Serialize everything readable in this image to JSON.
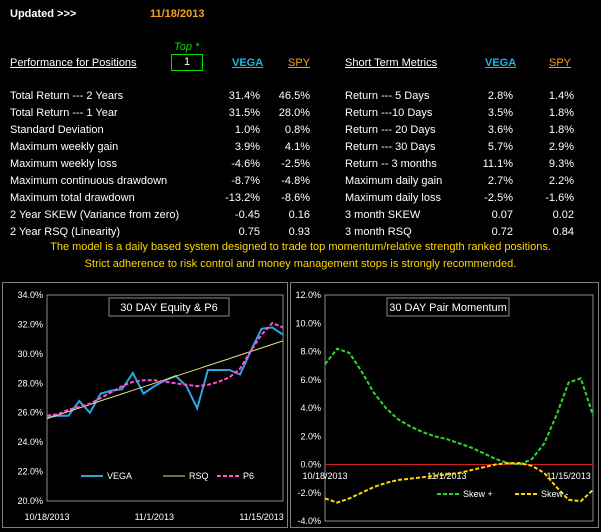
{
  "header": {
    "updated_label": "Updated >>>",
    "date": "11/18/2013"
  },
  "perf": {
    "title": "Performance for Positions",
    "top_label": "Top *",
    "top_value": "1",
    "col1": "VEGA",
    "col2": "SPY",
    "rows": [
      {
        "label": "Total Return --- 2 Years",
        "v1": "31.4%",
        "v2": "46.5%"
      },
      {
        "label": "Total Return --- 1 Year",
        "v1": "31.5%",
        "v2": "28.0%"
      },
      {
        "label": "Standard Deviation",
        "v1": "1.0%",
        "v2": "0.8%"
      },
      {
        "label": "Maximum weekly gain",
        "v1": "3.9%",
        "v2": "4.1%"
      },
      {
        "label": "Maximum weekly loss",
        "v1": "-4.6%",
        "v2": "-2.5%"
      },
      {
        "label": "Maximum continuous drawdown",
        "v1": "-8.7%",
        "v2": "-4.8%"
      },
      {
        "label": "Maximum total drawdown",
        "v1": "-13.2%",
        "v2": "-8.6%"
      },
      {
        "label": "2 Year SKEW  (Variance from zero)",
        "v1": "-0.45",
        "v2": "0.16"
      },
      {
        "label": "2 Year RSQ  (Linearity)",
        "v1": "0.75",
        "v2": "0.93"
      }
    ]
  },
  "short": {
    "title": "Short Term Metrics",
    "col1": "VEGA",
    "col2": "SPY",
    "rows": [
      {
        "label": "Return --- 5 Days",
        "v1": "2.8%",
        "v2": "1.4%"
      },
      {
        "label": "Return ---10 Days",
        "v1": "3.5%",
        "v2": "1.8%"
      },
      {
        "label": "Return --- 20 Days",
        "v1": "3.6%",
        "v2": "1.8%"
      },
      {
        "label": "Return --- 30 Days",
        "v1": "5.7%",
        "v2": "2.9%"
      },
      {
        "label": "Return -- 3 months",
        "v1": "11.1%",
        "v2": "9.3%"
      },
      {
        "label": "Maximum daily gain",
        "v1": "2.7%",
        "v2": "2.2%"
      },
      {
        "label": "Maximum daily loss",
        "v1": "-2.5%",
        "v2": "-1.6%"
      },
      {
        "label": "3 month SKEW",
        "v1": "0.07",
        "v2": "0.02"
      },
      {
        "label": "3 month RSQ",
        "v1": "0.72",
        "v2": "0.84"
      }
    ]
  },
  "notes": {
    "line1": "The model is a daily based system designed to trade top momentum/relative strength ranked positions.",
    "line2": "Strict adherence to risk control and money management stops is strongly recommended."
  },
  "colors": {
    "vega": "#2aa7e0",
    "rsq": "#e8e07a",
    "p6": "#ff4fd8",
    "skew_plus": "#2fd62f",
    "skew_minus": "#ffd800",
    "accent": "#f4a21a"
  },
  "chart_data": [
    {
      "type": "line",
      "title": "30 DAY  Equity & P6",
      "ylim": [
        0.2,
        0.34
      ],
      "yticks": [
        "20.0%",
        "22.0%",
        "24.0%",
        "26.0%",
        "28.0%",
        "30.0%",
        "32.0%",
        "34.0%"
      ],
      "xticks": [
        {
          "label": "10/18/2013",
          "i": 0
        },
        {
          "label": "11/1/2013",
          "i": 10
        },
        {
          "label": "11/15/2013",
          "i": 20
        }
      ],
      "series": [
        {
          "name": "VEGA",
          "values": [
            0.257,
            0.258,
            0.258,
            0.268,
            0.26,
            0.273,
            0.275,
            0.276,
            0.287,
            0.273,
            0.278,
            0.282,
            0.285,
            0.278,
            0.263,
            0.289,
            0.289,
            0.289,
            0.286,
            0.302,
            0.317,
            0.318,
            0.313
          ]
        },
        {
          "name": "RSQ",
          "values": [
            0.256,
            0.2584,
            0.2608,
            0.2632,
            0.2656,
            0.268,
            0.2704,
            0.2728,
            0.2752,
            0.2776,
            0.28,
            0.2824,
            0.2848,
            0.2872,
            0.2896,
            0.292,
            0.2944,
            0.2968,
            0.2992,
            0.3016,
            0.304,
            0.3064,
            0.3088
          ]
        },
        {
          "name": "P6",
          "values": [
            0.258,
            0.259,
            0.262,
            0.264,
            0.266,
            0.27,
            0.274,
            0.278,
            0.281,
            0.282,
            0.282,
            0.281,
            0.28,
            0.279,
            0.278,
            0.279,
            0.281,
            0.284,
            0.29,
            0.302,
            0.313,
            0.321,
            0.318
          ]
        }
      ]
    },
    {
      "type": "line",
      "title": "30 DAY Pair Momentum",
      "ylim": [
        -0.04,
        0.12
      ],
      "yticks": [
        "-4.0%",
        "-2.0%",
        "0.0%",
        "2.0%",
        "4.0%",
        "6.0%",
        "8.0%",
        "10.0%",
        "12.0%"
      ],
      "xticks": [
        {
          "label": "10/18/2013",
          "i": 0
        },
        {
          "label": "11/1/2013",
          "i": 10
        },
        {
          "label": "11/15/2013",
          "i": 20
        }
      ],
      "series": [
        {
          "name": "Skew +",
          "values": [
            0.071,
            0.082,
            0.079,
            0.066,
            0.051,
            0.04,
            0.032,
            0.027,
            0.023,
            0.02,
            0.018,
            0.015,
            0.012,
            0.008,
            0.004,
            0.001,
            0.0,
            0.004,
            0.015,
            0.035,
            0.058,
            0.061,
            0.035
          ]
        },
        {
          "name": "Skew -",
          "values": [
            -0.024,
            -0.027,
            -0.024,
            -0.02,
            -0.016,
            -0.013,
            -0.011,
            -0.01,
            -0.009,
            -0.008,
            -0.007,
            -0.006,
            -0.004,
            -0.002,
            0.0,
            0.001,
            0.001,
            -0.001,
            -0.006,
            -0.016,
            -0.025,
            -0.026,
            -0.018
          ]
        }
      ]
    }
  ]
}
